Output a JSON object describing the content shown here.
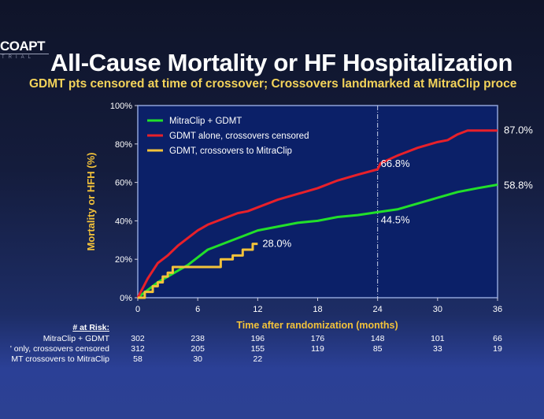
{
  "slide": {
    "logo": "COAPT",
    "logo_sub": "TRIAL",
    "title": "All-Cause Mortality or HF Hospitalization",
    "subtitle": "GDMT pts censored at time of crossover; Crossovers landmarked at MitraClip proce"
  },
  "chart_data": {
    "type": "line",
    "xlabel": "Time after randomization (months)",
    "ylabel": "Mortality or HFH (%)",
    "xlim": [
      0,
      36
    ],
    "ylim": [
      0,
      100
    ],
    "x_ticks": [
      "0",
      "6",
      "12",
      "18",
      "24",
      "30",
      "36"
    ],
    "y_ticks": [
      "0%",
      "20%",
      "40%",
      "60%",
      "80%",
      "100%"
    ],
    "legend_position": "top-left",
    "reference_line_x": 24,
    "colors": {
      "plot_bg": "#0b2068",
      "axis_label": "#f3c23a"
    },
    "series": [
      {
        "name": "MitraClip + GDMT",
        "color": "#22e02a",
        "x": [
          0,
          1,
          2,
          3,
          4,
          5,
          6,
          7,
          8,
          9,
          10,
          11,
          12,
          14,
          16,
          18,
          20,
          22,
          24,
          26,
          28,
          30,
          32,
          34,
          36
        ],
        "y": [
          0,
          4,
          8,
          11,
          14,
          17,
          21,
          25,
          27,
          29,
          31,
          33,
          35,
          37,
          39,
          40,
          42,
          43,
          44.5,
          46,
          49,
          52,
          55,
          57,
          58.8
        ]
      },
      {
        "name": "GDMT alone, crossovers censored",
        "color": "#e8202a",
        "x": [
          0,
          0.5,
          1,
          2,
          3,
          4,
          5,
          6,
          7,
          8,
          9,
          10,
          11,
          12,
          14,
          16,
          18,
          20,
          22,
          24,
          24.3,
          26,
          28,
          30,
          31,
          32,
          33,
          36
        ],
        "y": [
          0,
          5,
          10,
          18,
          22,
          27,
          31,
          35,
          38,
          40,
          42,
          44,
          45,
          47,
          51,
          54,
          57,
          61,
          64,
          66.8,
          70,
          74,
          78,
          81,
          82,
          85,
          87,
          87
        ]
      },
      {
        "name": "GDMT, crossovers to MitraClip",
        "color": "#f3c23a",
        "step": true,
        "x": [
          0,
          0.7,
          1.5,
          2,
          2.5,
          3,
          3.5,
          8,
          8.3,
          9.5,
          10.5,
          11.5,
          12
        ],
        "y": [
          0,
          3,
          6,
          8,
          11,
          13,
          16,
          16,
          20,
          22,
          25,
          28,
          28
        ]
      }
    ],
    "annotations": [
      {
        "text": "87.0%",
        "x": 36,
        "y": 87.0
      },
      {
        "text": "58.8%",
        "x": 36,
        "y": 58.8
      },
      {
        "text": "66.8%",
        "x": 24,
        "y": 66.8
      },
      {
        "text": "44.5%",
        "x": 24,
        "y": 44.5
      },
      {
        "text": "28.0%",
        "x": 12,
        "y": 28.0
      }
    ]
  },
  "at_risk": {
    "header": "# at Risk:",
    "rows": [
      {
        "label": "MitraClip + GDMT",
        "values": [
          "302",
          "238",
          "196",
          "176",
          "148",
          "101",
          "66"
        ]
      },
      {
        "label": "' only, crossovers censored",
        "values": [
          "312",
          "205",
          "155",
          "119",
          "85",
          "33",
          "19"
        ]
      },
      {
        "label": "MT crossovers to MitraClip",
        "values": [
          "58",
          "30",
          "22"
        ]
      }
    ]
  }
}
